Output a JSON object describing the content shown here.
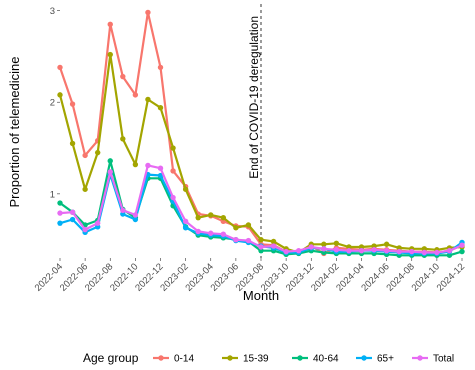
{
  "chart_data": {
    "type": "line",
    "xlabel": "Month",
    "ylabel": "Proportion of telemedicine",
    "ylim": [
      0.3,
      3.05
    ],
    "yticks": [
      1,
      2,
      3
    ],
    "x": [
      "2022-04",
      "2022-05",
      "2022-06",
      "2022-07",
      "2022-08",
      "2022-09",
      "2022-10",
      "2022-11",
      "2022-12",
      "2023-01",
      "2023-02",
      "2023-03",
      "2023-04",
      "2023-05",
      "2023-06",
      "2023-07",
      "2023-08",
      "2023-09",
      "2023-10",
      "2023-11",
      "2023-12",
      "2024-01",
      "2024-02",
      "2024-03",
      "2024-04",
      "2024-05",
      "2024-06",
      "2024-07",
      "2024-08",
      "2024-09",
      "2024-10",
      "2024-11",
      "2024-12"
    ],
    "xtick_labels": [
      "2022-04",
      "2022-06",
      "2022-08",
      "2022-10",
      "2022-12",
      "2023-02",
      "2023-04",
      "2023-06",
      "2023-08",
      "2023-10",
      "2023-12",
      "2024-02",
      "2024-04",
      "2024-06",
      "2024-08",
      "2024-10",
      "2024-12"
    ],
    "vline": {
      "x": "2023-08",
      "label": "End of COVID-19 deregulation"
    },
    "grid": false,
    "legend_position": "bottom",
    "legend_title": "Age group",
    "series": [
      {
        "name": "0-14",
        "color": "#F8766D",
        "values": [
          2.38,
          1.98,
          1.42,
          1.58,
          2.85,
          2.28,
          2.08,
          2.98,
          2.38,
          1.25,
          1.08,
          0.78,
          0.76,
          0.7,
          0.65,
          0.64,
          0.45,
          0.44,
          0.37,
          0.37,
          0.43,
          0.35,
          0.41,
          0.4,
          0.39,
          0.4,
          0.39,
          0.38,
          0.37,
          0.37,
          0.36,
          0.38,
          0.44
        ]
      },
      {
        "name": "15-39",
        "color": "#A3A500",
        "values": [
          2.08,
          1.55,
          1.05,
          1.45,
          2.52,
          1.6,
          1.32,
          2.03,
          1.94,
          1.5,
          1.05,
          0.74,
          0.77,
          0.74,
          0.63,
          0.66,
          0.5,
          0.48,
          0.4,
          0.36,
          0.45,
          0.45,
          0.46,
          0.42,
          0.42,
          0.43,
          0.45,
          0.41,
          0.4,
          0.4,
          0.39,
          0.41,
          0.42
        ]
      },
      {
        "name": "40-64",
        "color": "#00BF7D",
        "values": [
          0.9,
          0.8,
          0.66,
          0.71,
          1.36,
          0.83,
          0.74,
          1.17,
          1.17,
          0.87,
          0.64,
          0.55,
          0.53,
          0.52,
          0.5,
          0.48,
          0.38,
          0.38,
          0.34,
          0.35,
          0.38,
          0.36,
          0.35,
          0.35,
          0.35,
          0.35,
          0.34,
          0.33,
          0.33,
          0.33,
          0.33,
          0.33,
          0.37
        ]
      },
      {
        "name": "65+",
        "color": "#00B0F6",
        "values": [
          0.68,
          0.72,
          0.58,
          0.64,
          1.21,
          0.78,
          0.72,
          1.21,
          1.2,
          0.92,
          0.63,
          0.57,
          0.55,
          0.54,
          0.49,
          0.47,
          0.43,
          0.41,
          0.36,
          0.36,
          0.41,
          0.4,
          0.37,
          0.37,
          0.38,
          0.38,
          0.37,
          0.36,
          0.35,
          0.35,
          0.35,
          0.37,
          0.47
        ]
      },
      {
        "name": "Total",
        "color": "#E76BF3",
        "values": [
          0.79,
          0.8,
          0.61,
          0.68,
          1.24,
          0.82,
          0.77,
          1.31,
          1.28,
          0.96,
          0.7,
          0.59,
          0.57,
          0.56,
          0.5,
          0.49,
          0.42,
          0.43,
          0.37,
          0.38,
          0.42,
          0.4,
          0.39,
          0.38,
          0.38,
          0.39,
          0.38,
          0.37,
          0.37,
          0.36,
          0.36,
          0.38,
          0.44
        ]
      }
    ]
  }
}
